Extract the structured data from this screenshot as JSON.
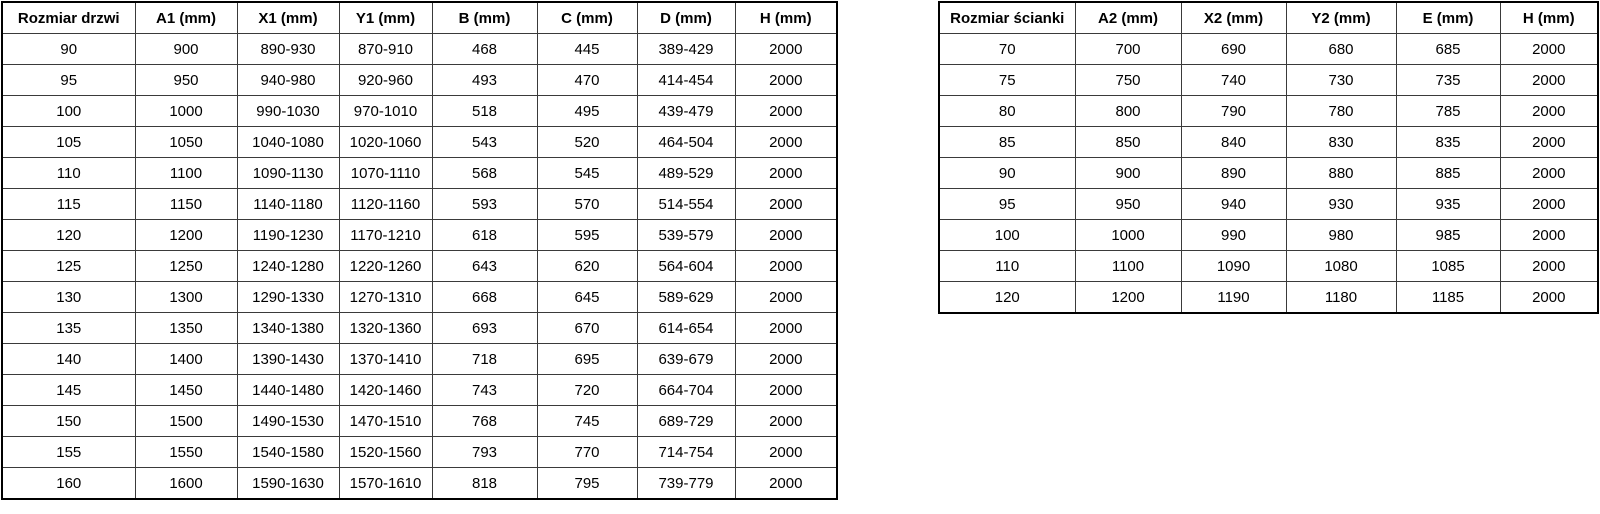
{
  "page": {
    "background": "#ffffff",
    "text_color": "#000000",
    "border_color": "#000000"
  },
  "tables": [
    {
      "name": "door-size-table",
      "headers": [
        "Rozmiar drzwi",
        "A1 (mm)",
        "X1 (mm)",
        "Y1 (mm)",
        "B (mm)",
        "C (mm)",
        "D (mm)",
        "H (mm)"
      ],
      "rows": [
        [
          "90",
          "900",
          "890-930",
          "870-910",
          "468",
          "445",
          "389-429",
          "2000"
        ],
        [
          "95",
          "950",
          "940-980",
          "920-960",
          "493",
          "470",
          "414-454",
          "2000"
        ],
        [
          "100",
          "1000",
          "990-1030",
          "970-1010",
          "518",
          "495",
          "439-479",
          "2000"
        ],
        [
          "105",
          "1050",
          "1040-1080",
          "1020-1060",
          "543",
          "520",
          "464-504",
          "2000"
        ],
        [
          "110",
          "1100",
          "1090-1130",
          "1070-1110",
          "568",
          "545",
          "489-529",
          "2000"
        ],
        [
          "115",
          "1150",
          "1140-1180",
          "1120-1160",
          "593",
          "570",
          "514-554",
          "2000"
        ],
        [
          "120",
          "1200",
          "1190-1230",
          "1170-1210",
          "618",
          "595",
          "539-579",
          "2000"
        ],
        [
          "125",
          "1250",
          "1240-1280",
          "1220-1260",
          "643",
          "620",
          "564-604",
          "2000"
        ],
        [
          "130",
          "1300",
          "1290-1330",
          "1270-1310",
          "668",
          "645",
          "589-629",
          "2000"
        ],
        [
          "135",
          "1350",
          "1340-1380",
          "1320-1360",
          "693",
          "670",
          "614-654",
          "2000"
        ],
        [
          "140",
          "1400",
          "1390-1430",
          "1370-1410",
          "718",
          "695",
          "639-679",
          "2000"
        ],
        [
          "145",
          "1450",
          "1440-1480",
          "1420-1460",
          "743",
          "720",
          "664-704",
          "2000"
        ],
        [
          "150",
          "1500",
          "1490-1530",
          "1470-1510",
          "768",
          "745",
          "689-729",
          "2000"
        ],
        [
          "155",
          "1550",
          "1540-1580",
          "1520-1560",
          "793",
          "770",
          "714-754",
          "2000"
        ],
        [
          "160",
          "1600",
          "1590-1630",
          "1570-1610",
          "818",
          "795",
          "739-779",
          "2000"
        ]
      ]
    },
    {
      "name": "wall-size-table",
      "headers": [
        "Rozmiar ścianki",
        "A2 (mm)",
        "X2 (mm)",
        "Y2 (mm)",
        "E (mm)",
        "H (mm)"
      ],
      "rows": [
        [
          "70",
          "700",
          "690",
          "680",
          "685",
          "2000"
        ],
        [
          "75",
          "750",
          "740",
          "730",
          "735",
          "2000"
        ],
        [
          "80",
          "800",
          "790",
          "780",
          "785",
          "2000"
        ],
        [
          "85",
          "850",
          "840",
          "830",
          "835",
          "2000"
        ],
        [
          "90",
          "900",
          "890",
          "880",
          "885",
          "2000"
        ],
        [
          "95",
          "950",
          "940",
          "930",
          "935",
          "2000"
        ],
        [
          "100",
          "1000",
          "990",
          "980",
          "985",
          "2000"
        ],
        [
          "110",
          "1100",
          "1090",
          "1080",
          "1085",
          "2000"
        ],
        [
          "120",
          "1200",
          "1190",
          "1180",
          "1185",
          "2000"
        ]
      ]
    }
  ]
}
